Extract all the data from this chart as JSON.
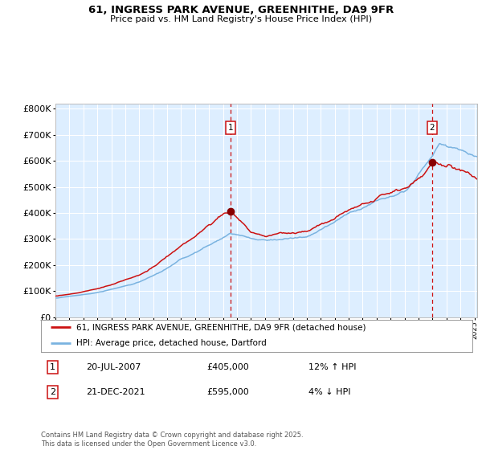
{
  "title_line1": "61, INGRESS PARK AVENUE, GREENHITHE, DA9 9FR",
  "title_line2": "Price paid vs. HM Land Registry's House Price Index (HPI)",
  "ylim": [
    0,
    820000
  ],
  "yticks": [
    0,
    100000,
    200000,
    300000,
    400000,
    500000,
    600000,
    700000,
    800000
  ],
  "ytick_labels": [
    "£0",
    "£100K",
    "£200K",
    "£300K",
    "£400K",
    "£500K",
    "£600K",
    "£700K",
    "£800K"
  ],
  "sale1_date": "20-JUL-2007",
  "sale1_price": 405000,
  "sale1_hpi_diff": "12% ↑ HPI",
  "sale1_x": 2007.55,
  "sale2_date": "21-DEC-2021",
  "sale2_price": 595000,
  "sale2_hpi_diff": "4% ↓ HPI",
  "sale2_x": 2021.97,
  "hpi_color": "#7ab3e0",
  "price_color": "#cc1111",
  "bg_chart_color": "#ddeeff",
  "bg_outside_color": "#ffffff",
  "grid_color": "#ffffff",
  "vline_color": "#cc1111",
  "legend_label_price": "61, INGRESS PARK AVENUE, GREENHITHE, DA9 9FR (detached house)",
  "legend_label_hpi": "HPI: Average price, detached house, Dartford",
  "footer": "Contains HM Land Registry data © Crown copyright and database right 2025.\nThis data is licensed under the Open Government Licence v3.0.",
  "marker_color": "#880000",
  "xmin": 1995.0,
  "xmax": 2025.2
}
